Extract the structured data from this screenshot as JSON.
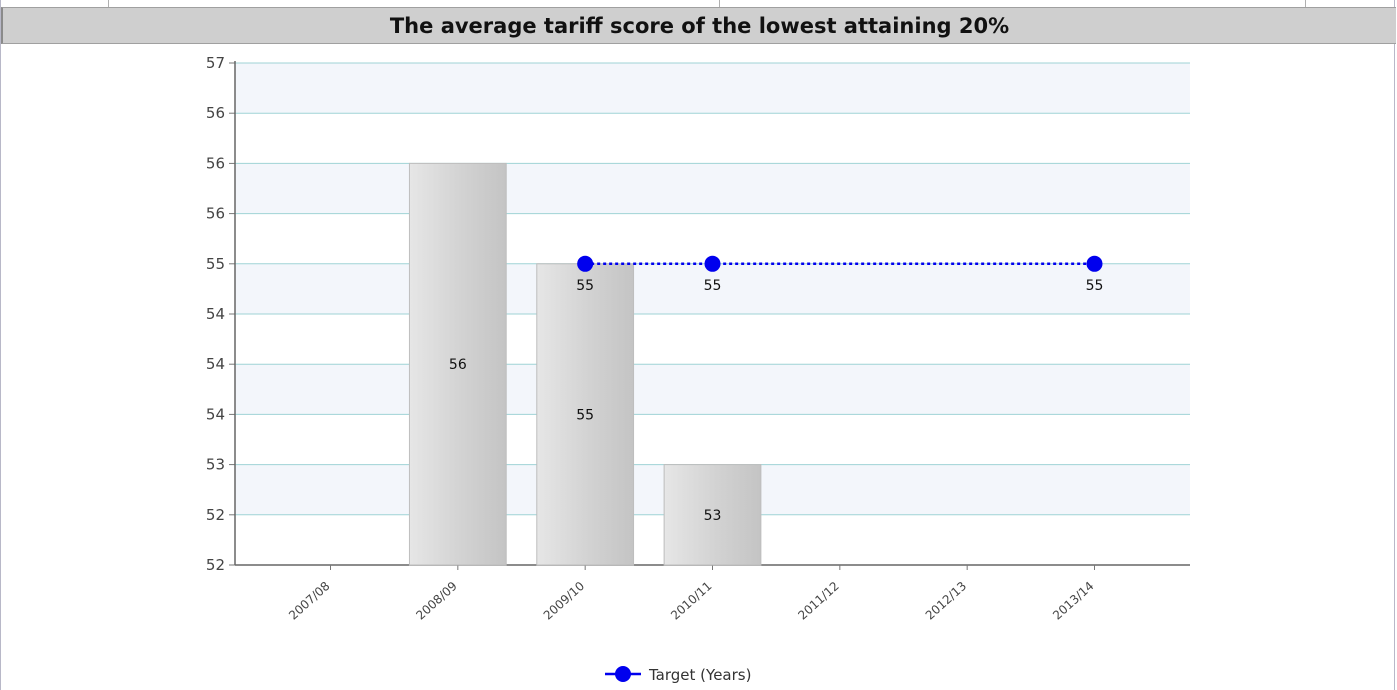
{
  "chart_data": {
    "type": "bar",
    "title": "The average tariff score of the lowest attaining 20%",
    "categories": [
      "2007/08",
      "2008/09",
      "2009/10",
      "2010/11",
      "2011/12",
      "2012/13",
      "2013/14"
    ],
    "yticks": [
      "57",
      "56",
      "56",
      "56",
      "55",
      "54",
      "54",
      "54",
      "53",
      "52",
      "52"
    ],
    "ylim": [
      52,
      57
    ],
    "grid": true,
    "series": [
      {
        "type": "bar",
        "values": [
          null,
          56,
          55,
          53,
          null,
          null,
          null
        ],
        "labels": [
          "",
          "56",
          "55",
          "53",
          "",
          "",
          ""
        ],
        "color": "#d4d4d4"
      },
      {
        "name": "Target (Years)",
        "type": "line",
        "values": [
          null,
          null,
          55,
          55,
          null,
          null,
          55
        ],
        "labels": [
          "",
          "",
          "55",
          "55",
          "",
          "",
          "55"
        ],
        "color": "#0000ee",
        "line_style": "dotted"
      }
    ],
    "legend": {
      "position": "bottom",
      "entries": [
        "Target (Years)"
      ]
    }
  }
}
